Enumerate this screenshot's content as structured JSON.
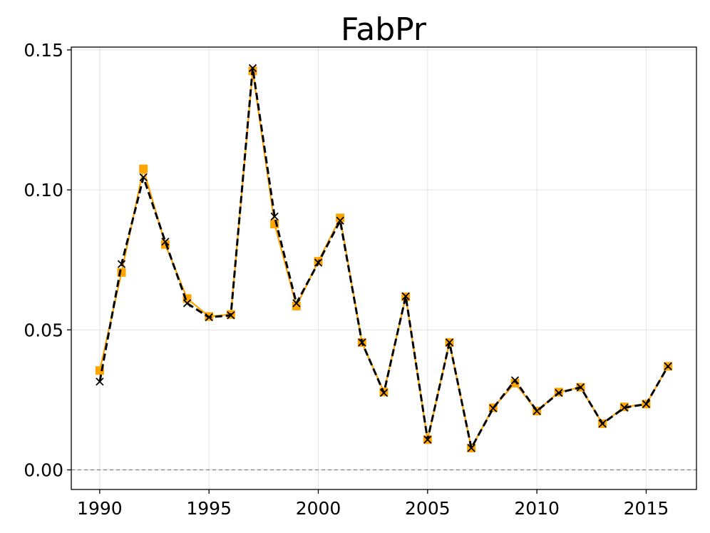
{
  "chart_data": {
    "type": "line",
    "title": "FabPr",
    "xlabel": "",
    "ylabel": "",
    "xlim": [
      1988.7,
      2017.3
    ],
    "ylim": [
      -0.007,
      0.151
    ],
    "xticks": [
      1990,
      1995,
      2000,
      2005,
      2010,
      2015
    ],
    "yticks": [
      0.0,
      0.05,
      0.1,
      0.15
    ],
    "ytick_labels": [
      "0.00",
      "0.05",
      "0.10",
      "0.15"
    ],
    "grid": true,
    "reference_line": {
      "y": 0.0,
      "style": "dashed",
      "color": "#808080"
    },
    "x": [
      1990,
      1991,
      1992,
      1993,
      1994,
      1995,
      1996,
      1997,
      1998,
      1999,
      2000,
      2001,
      2002,
      2003,
      2004,
      2005,
      2006,
      2007,
      2008,
      2009,
      2010,
      2011,
      2012,
      2013,
      2014,
      2015,
      2016
    ],
    "series": [
      {
        "marker": "square",
        "line": "solid",
        "color": "#ffa500",
        "values": [
          0.0355,
          0.0705,
          0.1075,
          0.0805,
          0.0612,
          0.0548,
          0.0555,
          0.1425,
          0.0878,
          0.0585,
          0.0745,
          0.09,
          0.0455,
          0.0278,
          0.0618,
          0.0108,
          0.0455,
          0.0078,
          0.0222,
          0.031,
          0.021,
          0.0278,
          0.0295,
          0.0165,
          0.0225,
          0.0235,
          0.037
        ]
      },
      {
        "marker": "x",
        "line": "dashed",
        "color": "#000000",
        "values": [
          0.0315,
          0.0735,
          0.1045,
          0.0815,
          0.0595,
          0.0545,
          0.0552,
          0.1435,
          0.0905,
          0.0595,
          0.074,
          0.089,
          0.0455,
          0.0275,
          0.062,
          0.0108,
          0.0455,
          0.0078,
          0.022,
          0.032,
          0.021,
          0.0275,
          0.0295,
          0.0165,
          0.0222,
          0.0235,
          0.037
        ]
      }
    ]
  }
}
